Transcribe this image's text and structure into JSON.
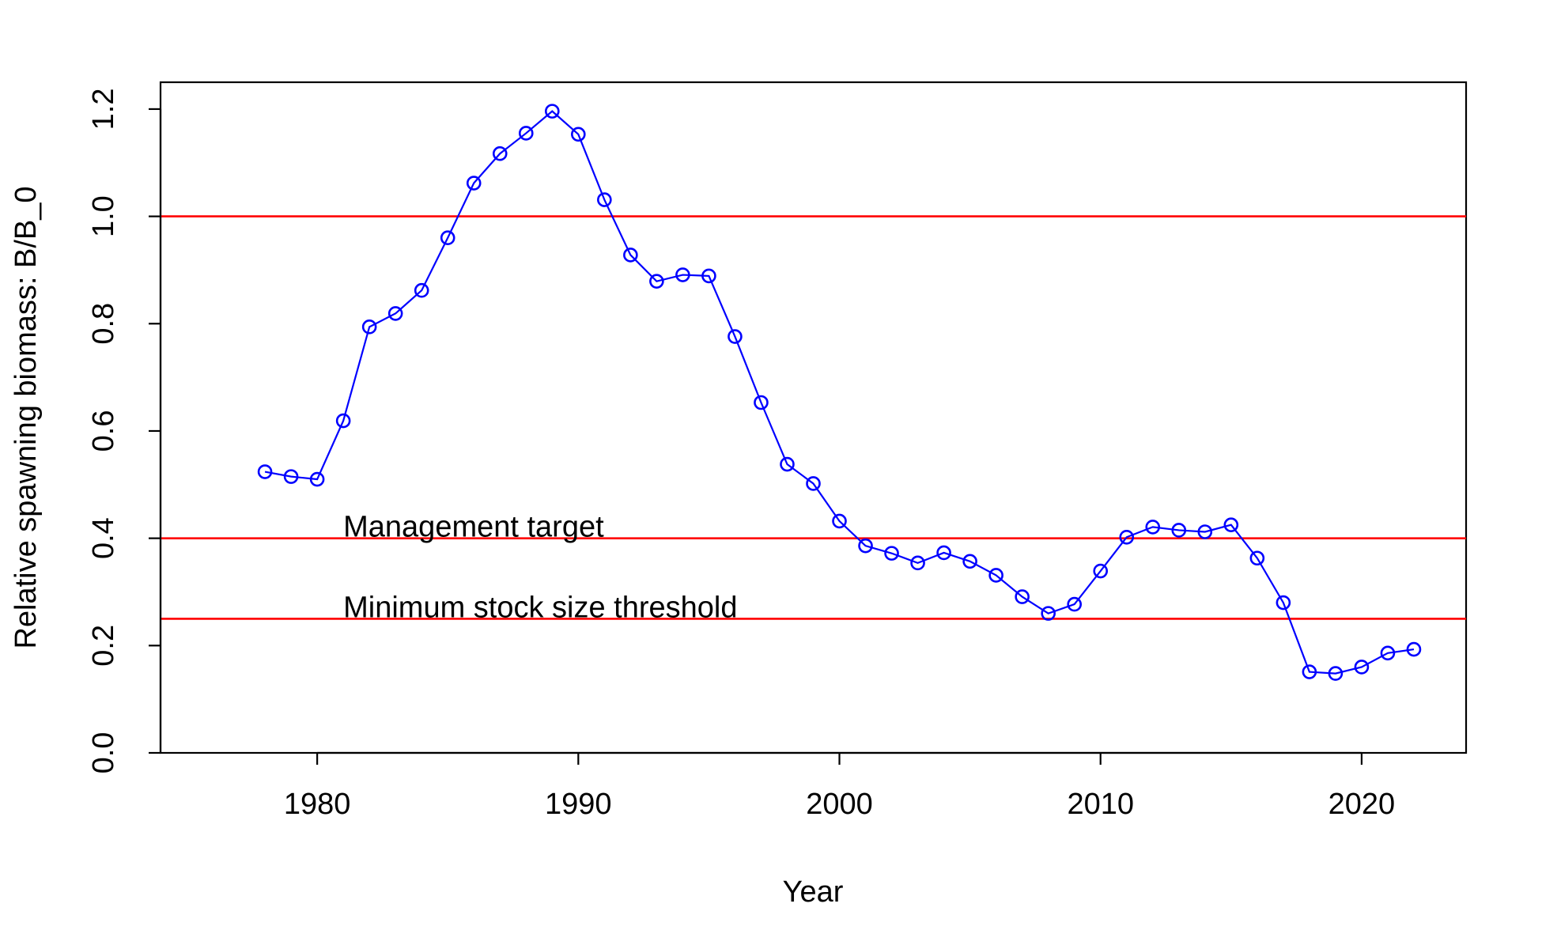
{
  "chart_data": {
    "type": "line",
    "title": "",
    "xlabel": "Year",
    "ylabel": "Relative spawning biomass: B/B_0",
    "xlim": [
      1974,
      2024
    ],
    "ylim": [
      0,
      1.25
    ],
    "x_ticks": [
      1980,
      1990,
      2000,
      2010,
      2020
    ],
    "x_tick_labels": [
      "1980",
      "1990",
      "2000",
      "2010",
      "2020"
    ],
    "y_ticks": [
      0,
      0.2,
      0.4,
      0.6,
      0.8,
      1.0,
      1.2
    ],
    "y_tick_labels": [
      "0.0",
      "0.2",
      "0.4",
      "0.6",
      "0.8",
      "1.0",
      "1.2"
    ],
    "grid": false,
    "series": [
      {
        "color": "#0000ff",
        "marker": "open-circle",
        "x": [
          1978,
          1979,
          1980,
          1981,
          1982,
          1983,
          1984,
          1985,
          1986,
          1987,
          1988,
          1989,
          1990,
          1991,
          1992,
          1993,
          1994,
          1995,
          1996,
          1997,
          1998,
          1999,
          2000,
          2001,
          2002,
          2003,
          2004,
          2005,
          2006,
          2007,
          2008,
          2009,
          2010,
          2011,
          2012,
          2013,
          2014,
          2015,
          2016,
          2017,
          2018,
          2019,
          2020,
          2021,
          2022
        ],
        "y": [
          0.524,
          0.515,
          0.51,
          0.619,
          0.794,
          0.819,
          0.862,
          0.96,
          1.062,
          1.117,
          1.155,
          1.196,
          1.153,
          1.031,
          0.928,
          0.879,
          0.891,
          0.889,
          0.776,
          0.653,
          0.538,
          0.502,
          0.432,
          0.386,
          0.372,
          0.354,
          0.373,
          0.357,
          0.331,
          0.291,
          0.26,
          0.277,
          0.339,
          0.402,
          0.421,
          0.415,
          0.412,
          0.425,
          0.363,
          0.28,
          0.151,
          0.148,
          0.16,
          0.186,
          0.193
        ]
      }
    ],
    "reference_lines": [
      {
        "y": 1.0,
        "color": "#ff0000",
        "label": ""
      },
      {
        "y": 0.4,
        "color": "#ff0000",
        "label": "Management target",
        "label_x": 1981
      },
      {
        "y": 0.25,
        "color": "#ff0000",
        "label": "Minimum stock size threshold",
        "label_x": 1981
      }
    ]
  }
}
